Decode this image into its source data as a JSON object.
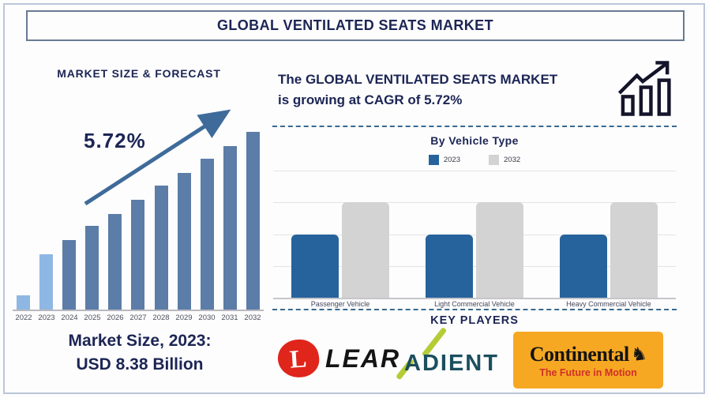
{
  "title": "GLOBAL VENTILATED SEATS MARKET",
  "left_panel": {
    "heading": "MARKET SIZE & FORECAST",
    "growth_label": "5.72%",
    "market_size_line1": "Market Size, 2023:",
    "market_size_line2": "USD 8.38 Billion"
  },
  "right_panel": {
    "growth_text_line1": "The GLOBAL VENTILATED SEATS MARKET",
    "growth_text_line2": "is growing at CAGR of 5.72%",
    "section_heading": "By Vehicle Type",
    "key_players_heading": "KEY PLAYERS"
  },
  "key_players": {
    "lear": {
      "wordmark": "LEAR",
      "emblem_letter": "L",
      "emblem_color": "#e0251b"
    },
    "adient": {
      "wordmark": "ADIENT",
      "text_color": "#1b4f5e",
      "slash_color": "#b5cc35"
    },
    "continental": {
      "wordmark": "Continental",
      "tagline": "The Future in Motion",
      "bg_color": "#f7a823",
      "tagline_color": "#d03028",
      "horse_glyph": "♞"
    }
  },
  "icons": {
    "growth_chart_icon": "bar-chart-with-rising-arrow",
    "trend_arrow_icon": "rising-arrow"
  },
  "colors": {
    "navy_text": "#1c2554",
    "bar_light_blue": "#8fb7e3",
    "bar_slate_blue": "#5b7da7",
    "bar_blue_2023": "#26639c",
    "bar_gray_2032": "#d3d3d3",
    "arrow_blue": "#3e6b9a",
    "dashed_divider": "#39698f",
    "outer_border": "#bcc6d8",
    "title_border": "#6b7994"
  },
  "chart_data": [
    {
      "type": "bar",
      "title": "MARKET SIZE & FORECAST",
      "categories": [
        "2022",
        "2023",
        "2024",
        "2025",
        "2026",
        "2027",
        "2028",
        "2029",
        "2030",
        "2031",
        "2032"
      ],
      "values_relative_pct": [
        8,
        31,
        39,
        47,
        54,
        62,
        70,
        77,
        85,
        92,
        100
      ],
      "bar_colors": [
        "#8fb7e3",
        "#8fb7e3",
        "#5b7da7",
        "#5b7da7",
        "#5b7da7",
        "#5b7da7",
        "#5b7da7",
        "#5b7da7",
        "#5b7da7",
        "#5b7da7",
        "#5b7da7"
      ],
      "annotation": "5.72%",
      "known_values": {
        "2023": "USD 8.38 Billion"
      },
      "cagr_pct": 5.72,
      "xlabel": "",
      "ylabel": "",
      "yaxis": "unlabeled stylized scale, bars grow linearly 2022-2032",
      "grid": false,
      "legend_position": "none"
    },
    {
      "type": "bar",
      "title": "By Vehicle Type",
      "categories": [
        "Passenger Vehicle",
        "Light Commercial Vehicle",
        "Heavy Commercial Vehicle"
      ],
      "series": [
        {
          "name": "2023",
          "color": "#26639c",
          "values_relative_pct": [
            50,
            50,
            50
          ]
        },
        {
          "name": "2032",
          "color": "#d3d3d3",
          "values_relative_pct": [
            75,
            75,
            75
          ]
        }
      ],
      "xlabel": "",
      "ylabel": "",
      "yaxis": "unlabeled; gray 2032 bars reach 75% gridline, blue 2023 bars reach 50% gridline",
      "grid": true,
      "legend_position": "top"
    }
  ]
}
